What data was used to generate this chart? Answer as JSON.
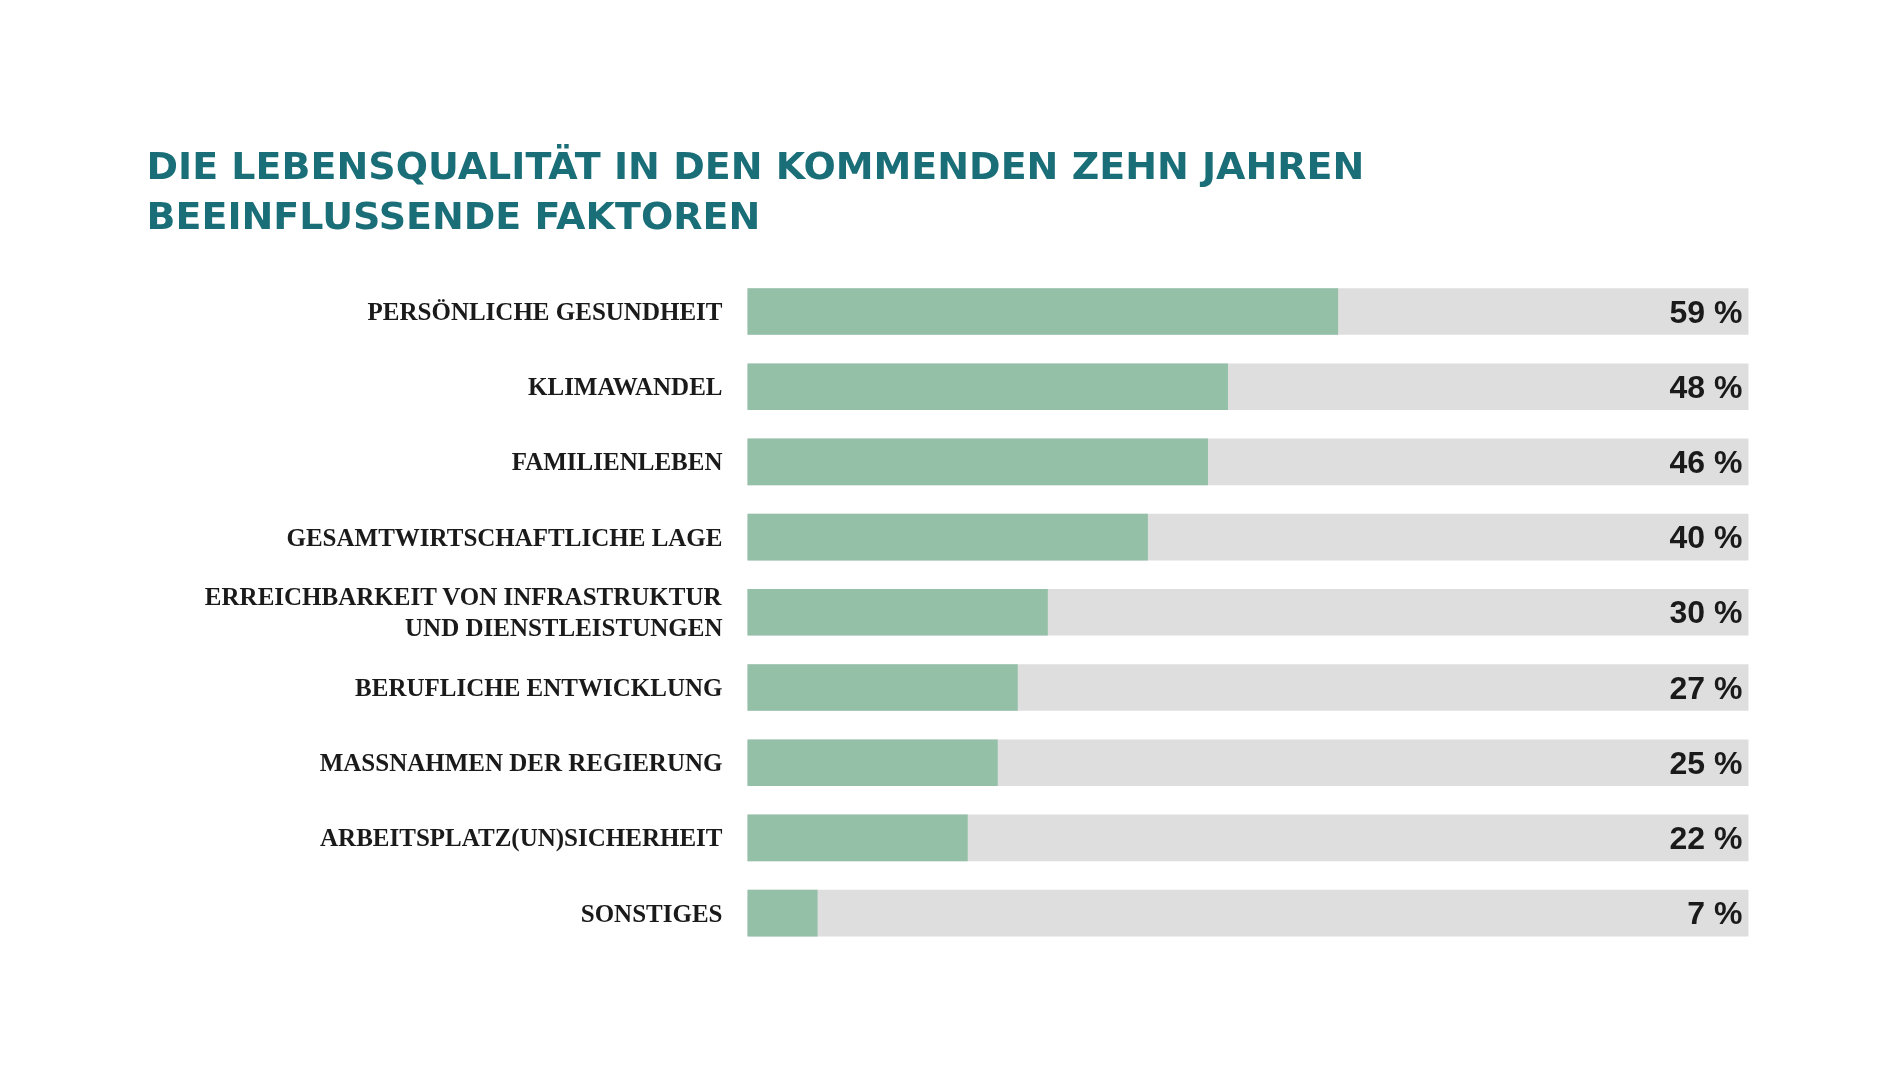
{
  "chart_data": {
    "type": "bar",
    "orientation": "horizontal",
    "title": "DIE LEBENSQUALITÄT IN DEN KOMMENDEN ZEHN JAHREN\nBEEINFLUSSENDE FAKTOREN",
    "categories": [
      "PERSÖNLICHE GESUNDHEIT",
      "KLIMAWANDEL",
      "FAMILIENLEBEN",
      "GESAMTWIRTSCHAFTLICHE LAGE",
      "ERREICHBARKEIT VON INFRASTRUKTUR\nUND DIENSTLEISTUNGEN",
      "BERUFLICHE ENTWICKLUNG",
      "MASSNAHMEN DER REGIERUNG",
      "ARBEITSPLATZ(UN)SICHERHEIT",
      "SONSTIGES"
    ],
    "series": [
      {
        "color": "#94c0a8",
        "values": [
          59,
          48,
          46,
          40,
          30,
          27,
          25,
          22,
          7
        ],
        "value_labels": [
          "59 %",
          "48 %",
          "46 %",
          "40 %",
          "30 %",
          "27 %",
          "25 %",
          "22 %",
          "7 %"
        ]
      }
    ],
    "bands": [
      {
        "axis": "x",
        "from": 0,
        "to": 100,
        "color": "#dedede"
      }
    ],
    "tick_labels": false
  }
}
